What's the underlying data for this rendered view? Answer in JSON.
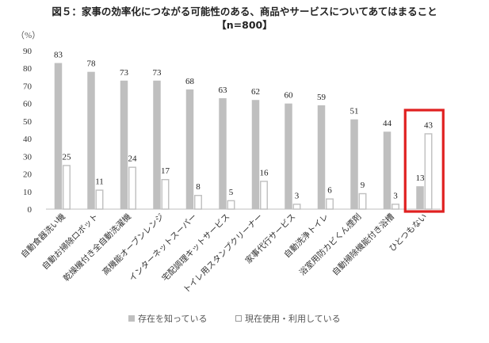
{
  "chart_data": {
    "type": "bar",
    "title": "図５：家事の効率化につながる可能性のある、商品やサービスについてあてはまること",
    "subtitle": "【n=800】",
    "ylabel": "（%）",
    "ylim": [
      0,
      90
    ],
    "yticks": [
      0,
      10,
      20,
      30,
      40,
      50,
      60,
      70,
      80,
      90
    ],
    "grid": false,
    "legend_position": "bottom",
    "categories": [
      "自動食器洗い機",
      "自動お掃除ロボット",
      "乾燥機付き全自動洗濯機",
      "高機能オーブンレンジ",
      "インターネットスーパー",
      "宅配調理キットサービス",
      "トイレ用スタンプクリーナー",
      "家事代行サービス",
      "自動洗浄トイレ",
      "浴室用防カビくん煙剤",
      "自動掃除機能付き浴槽",
      "ひとつもない"
    ],
    "series": [
      {
        "name": "存在を知っている",
        "color": "#bfbfbf",
        "values": [
          83,
          78,
          73,
          73,
          68,
          63,
          62,
          60,
          59,
          51,
          44,
          13
        ]
      },
      {
        "name": "現在使用・利用している",
        "color": "#ffffff",
        "values": [
          25,
          11,
          24,
          17,
          8,
          5,
          16,
          3,
          6,
          9,
          3,
          43
        ]
      }
    ],
    "highlight": {
      "category": "ひとつもない",
      "color": "#e02020"
    }
  }
}
